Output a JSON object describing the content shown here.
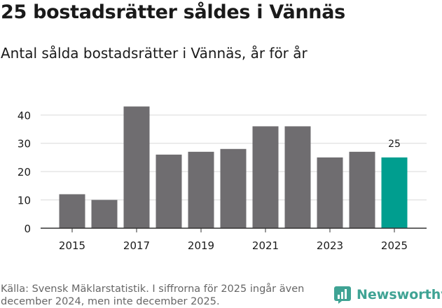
{
  "title": "25 bostadsrätter såldes i Vännäs",
  "subtitle": "Antal sålda bostadsrätter i Vännäs, år för år",
  "footer": "Källa: Svensk Mäklarstatistik. I siffrorna för 2025 ingår även december 2024, men inte december 2025.",
  "brand": {
    "name": "Newsworthy",
    "icon": "newsworthy-logo-icon"
  },
  "colors": {
    "bar": "#6f6d70",
    "highlight": "#009e8f",
    "grid": "#d9d9d9",
    "axis": "#333333",
    "text": "#1a1a1a"
  },
  "chart_data": {
    "type": "bar",
    "title": "Antal sålda bostadsrätter i Vännäs, år för år",
    "categories": [
      "2015",
      "2016",
      "2017",
      "2018",
      "2019",
      "2020",
      "2021",
      "2022",
      "2023",
      "2024",
      "2025"
    ],
    "values": [
      12,
      10,
      43,
      26,
      27,
      28,
      36,
      36,
      25,
      27,
      25
    ],
    "highlight_index": 10,
    "data_label": "25",
    "xtick_labels": [
      "2015",
      "2017",
      "2019",
      "2021",
      "2023",
      "2025"
    ],
    "yticks": [
      0,
      10,
      20,
      30,
      40
    ],
    "ylim": [
      0,
      46
    ],
    "xlabel": "",
    "ylabel": "",
    "grid": true
  }
}
